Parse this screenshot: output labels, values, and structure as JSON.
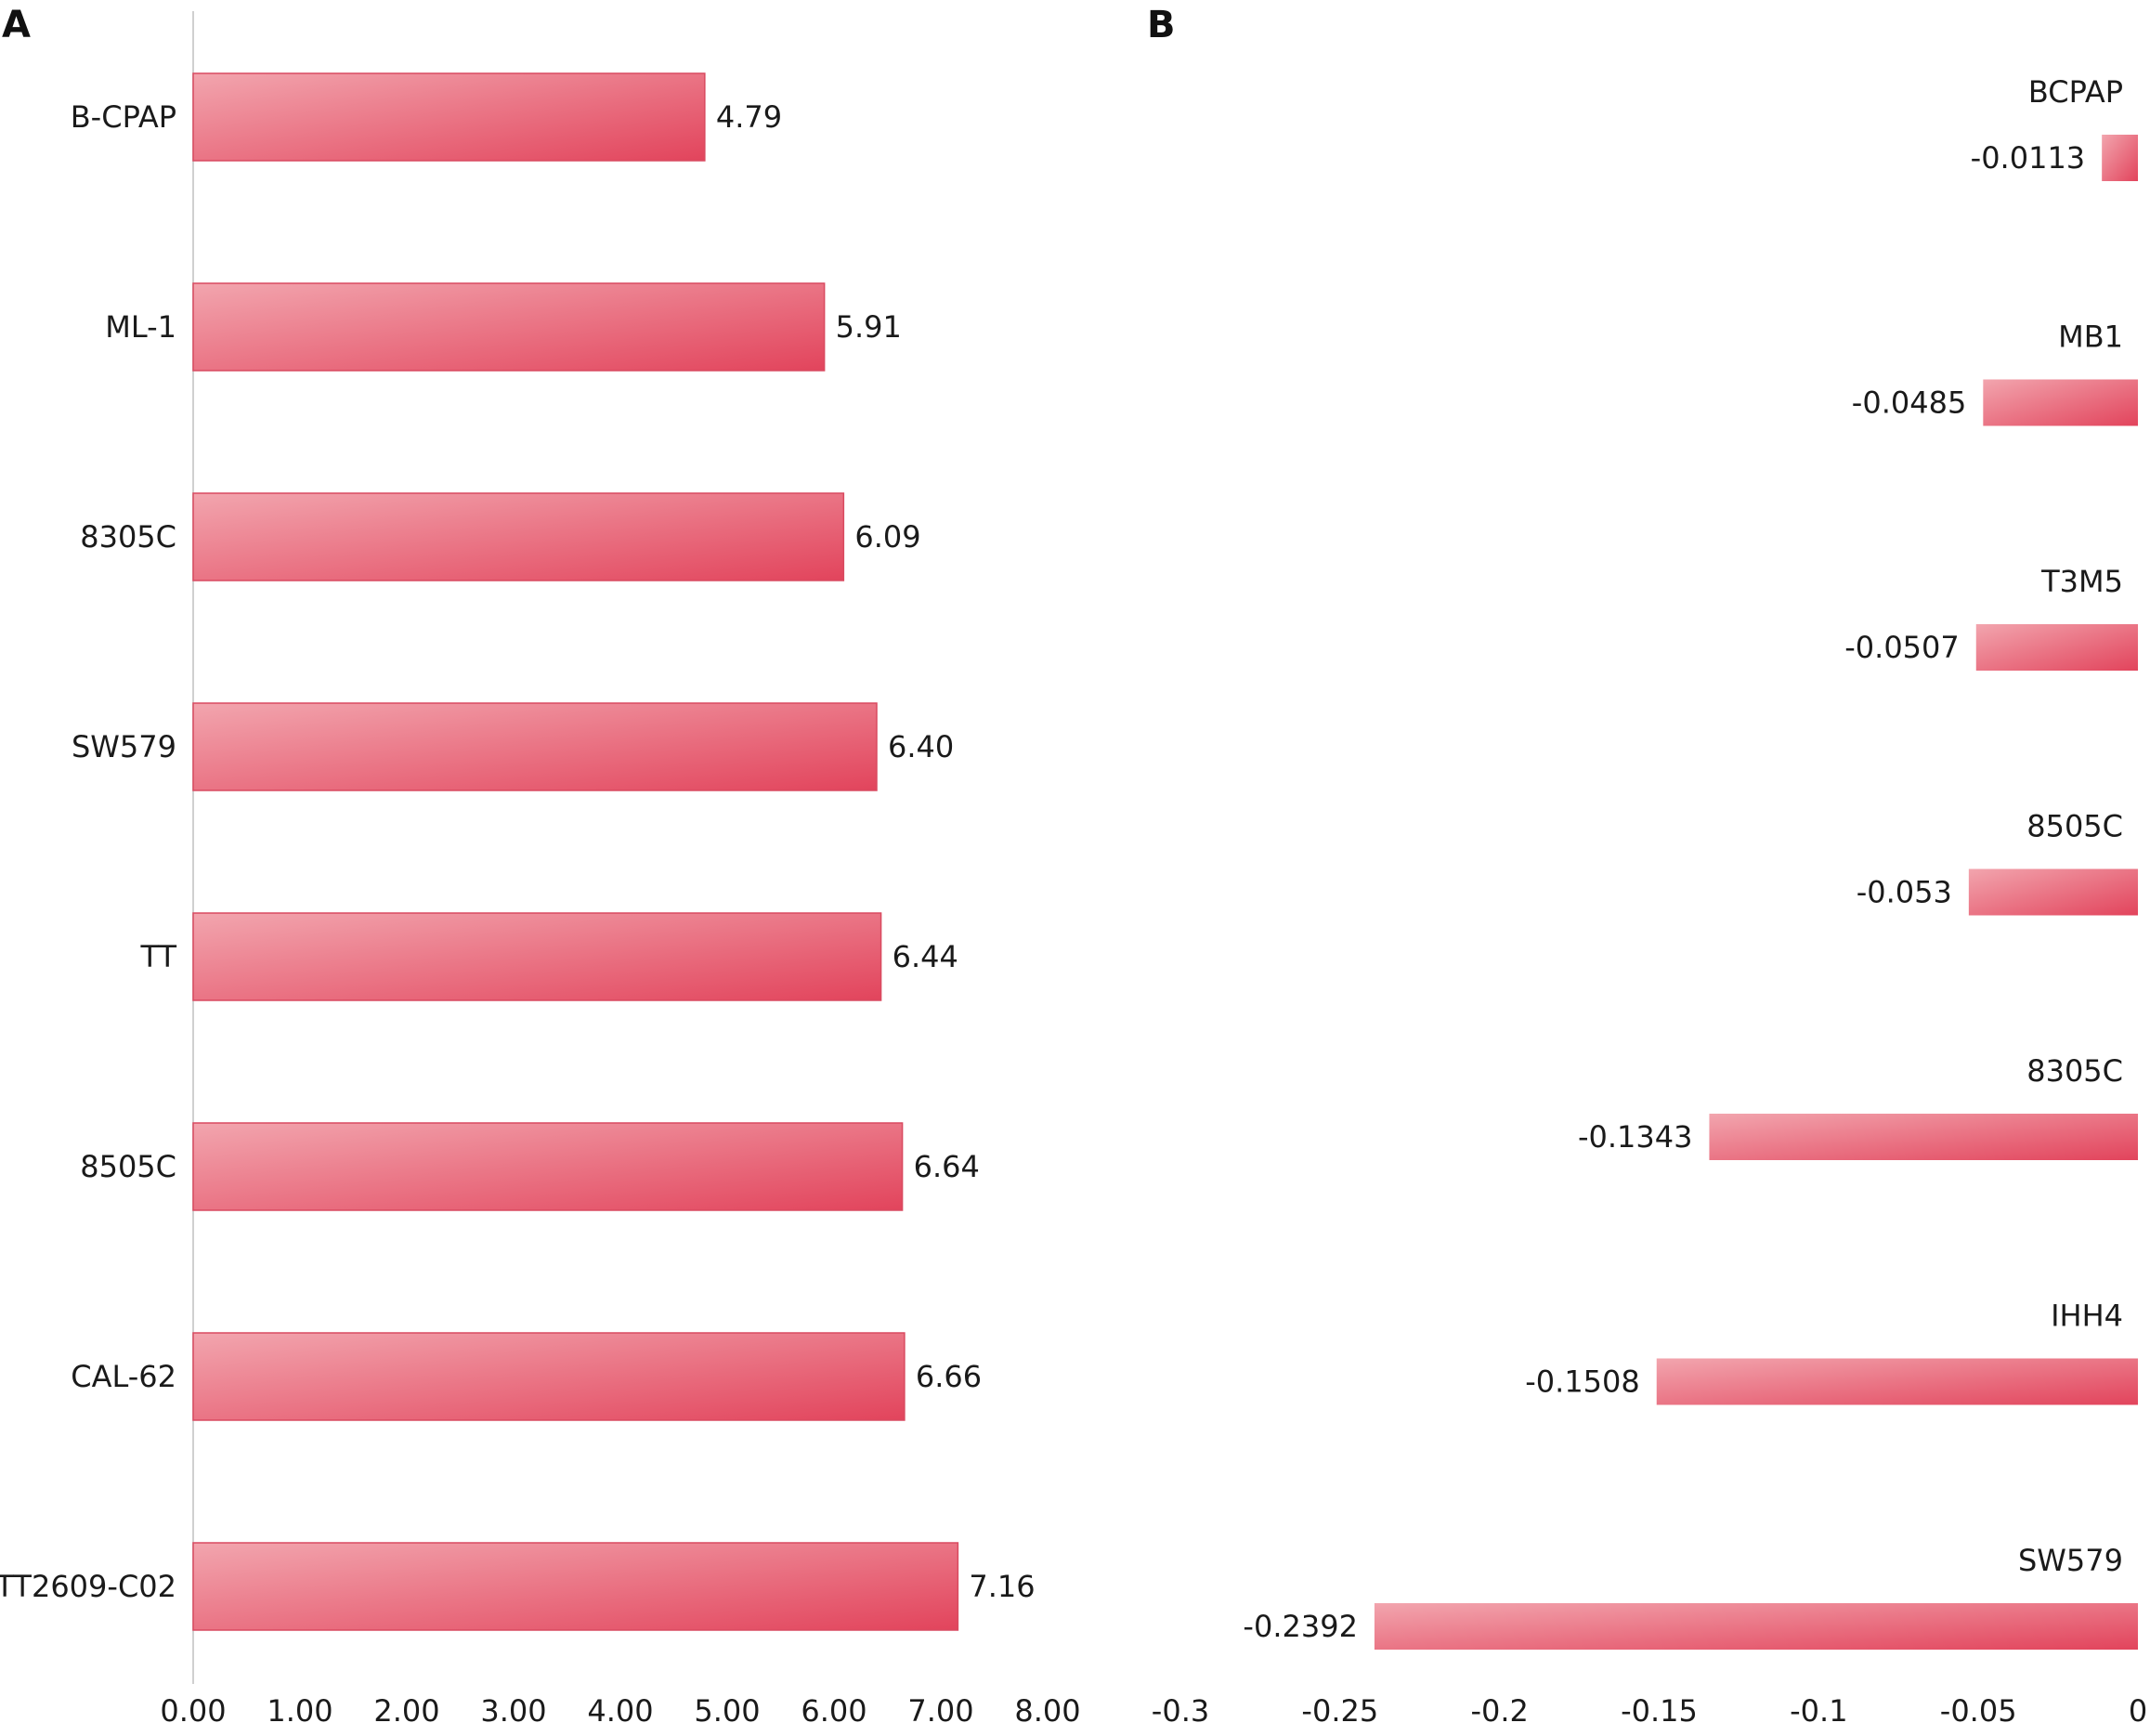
{
  "colors": {
    "bar_light": "#f2a5ae",
    "bar_dark": "#e2445c",
    "bar_edge": "#d94a60",
    "axis_line": "#d0d0d0"
  },
  "chart_data": [
    {
      "type": "bar",
      "orientation": "horizontal",
      "panel": "A",
      "categories": [
        "B-CPAP",
        "ML-1",
        "8305C",
        "SW579",
        "TT",
        "8505C",
        "CAL-62",
        "TT2609-C02"
      ],
      "values": [
        4.79,
        5.91,
        6.09,
        6.4,
        6.44,
        6.64,
        6.66,
        7.16
      ],
      "value_labels": [
        "4.79",
        "5.91",
        "6.09",
        "6.40",
        "6.44",
        "6.64",
        "6.66",
        "7.16"
      ],
      "xlim": [
        0,
        8
      ],
      "xticks": [
        "0.00",
        "1.00",
        "2.00",
        "3.00",
        "4.00",
        "5.00",
        "6.00",
        "7.00",
        "8.00"
      ],
      "category_label_position": "left of axis",
      "grid": false,
      "legend": "none"
    },
    {
      "type": "bar",
      "orientation": "horizontal",
      "panel": "B",
      "categories": [
        "BCPAP",
        "MB1",
        "T3M5",
        "8505C",
        "8305C",
        "IHH4",
        "SW579"
      ],
      "values": [
        -0.0113,
        -0.0485,
        -0.0507,
        -0.053,
        -0.1343,
        -0.1508,
        -0.2392
      ],
      "value_labels": [
        "-0.0113",
        "-0.0485",
        "-0.0507",
        "-0.053",
        "-0.1343",
        "-0.1508",
        "-0.2392"
      ],
      "xlim": [
        -0.3,
        0
      ],
      "xticks": [
        "-0.3",
        "-0.25",
        "-0.2",
        "-0.15",
        "-0.1",
        "-0.05",
        "0"
      ],
      "category_label_position": "above bar, right-aligned",
      "grid": false,
      "legend": "none"
    }
  ]
}
